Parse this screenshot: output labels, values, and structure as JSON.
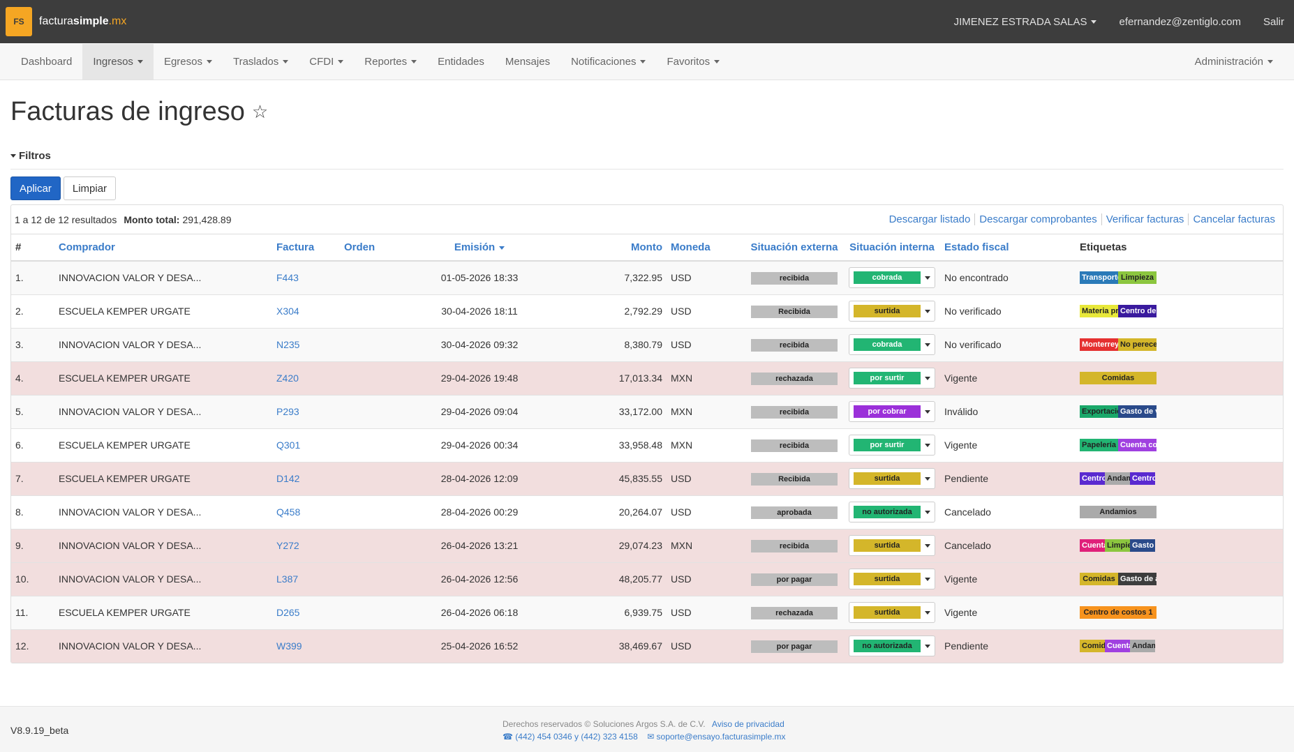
{
  "brand": {
    "logo": "FS",
    "part1": "factura",
    "part2": "simple",
    "part3": ".mx"
  },
  "topbar": {
    "user_name": "JIMENEZ ESTRADA SALAS",
    "email": "efernandez@zentiglo.com",
    "logout": "Salir"
  },
  "nav": {
    "items": [
      "Dashboard",
      "Ingresos",
      "Egresos",
      "Traslados",
      "CFDI",
      "Reportes",
      "Entidades",
      "Mensajes",
      "Notificaciones",
      "Favoritos"
    ],
    "admin": "Administración"
  },
  "page": {
    "title": "Facturas de ingreso"
  },
  "filters": {
    "label": "Filtros",
    "apply": "Aplicar",
    "clear": "Limpiar"
  },
  "summary": {
    "results": "1 a 12 de 12 resultados",
    "total_label": "Monto total:",
    "total_value": "291,428.89"
  },
  "actions": [
    "Descargar listado",
    "Descargar comprobantes",
    "Verificar facturas",
    "Cancelar facturas"
  ],
  "table": {
    "headers": [
      "#",
      "Comprador",
      "Factura",
      "Orden",
      "Emisión",
      "Monto",
      "Moneda",
      "Situación externa",
      "Situación interna",
      "Estado fiscal",
      "Etiquetas"
    ],
    "rows": [
      {
        "n": "1.",
        "buyer": "INNOVACION VALOR Y DESA...",
        "invoice": "F443",
        "order": "",
        "date": "01-05-2026 18:33",
        "amount": "7,322.95",
        "currency": "USD",
        "ext": "recibida",
        "int": "cobrada",
        "fiscal": "No encontrado",
        "tags": [
          "Transporte",
          "Limpieza"
        ]
      },
      {
        "n": "2.",
        "buyer": "ESCUELA KEMPER URGATE",
        "invoice": "X304",
        "order": "",
        "date": "30-04-2026 18:11",
        "amount": "2,792.29",
        "currency": "USD",
        "ext": "Recibida",
        "int": "surtida",
        "fiscal": "No verificado",
        "tags": [
          "Materia prim",
          "Centro de co"
        ]
      },
      {
        "n": "3.",
        "buyer": "INNOVACION VALOR Y DESA...",
        "invoice": "N235",
        "order": "",
        "date": "30-04-2026 09:32",
        "amount": "8,380.79",
        "currency": "USD",
        "ext": "recibida",
        "int": "cobrada",
        "fiscal": "No verificado",
        "tags": [
          "Monterrey",
          "No perecede"
        ]
      },
      {
        "n": "4.",
        "buyer": "ESCUELA KEMPER URGATE",
        "invoice": "Z420",
        "order": "",
        "date": "29-04-2026 19:48",
        "amount": "17,013.34",
        "currency": "MXN",
        "ext": "rechazada",
        "int": "por surtir",
        "fiscal": "Vigente",
        "tags": [
          "Comidas"
        ]
      },
      {
        "n": "5.",
        "buyer": "INNOVACION VALOR Y DESA...",
        "invoice": "P293",
        "order": "",
        "date": "29-04-2026 09:04",
        "amount": "33,172.00",
        "currency": "MXN",
        "ext": "recibida",
        "int": "por cobrar",
        "fiscal": "Inválido",
        "tags": [
          "Exportación",
          "Gasto de ver"
        ]
      },
      {
        "n": "6.",
        "buyer": "ESCUELA KEMPER URGATE",
        "invoice": "Q301",
        "order": "",
        "date": "29-04-2026 00:34",
        "amount": "33,958.48",
        "currency": "MXN",
        "ext": "recibida",
        "int": "por surtir",
        "fiscal": "Vigente",
        "tags": [
          "Papelería",
          "Cuenta conta"
        ]
      },
      {
        "n": "7.",
        "buyer": "ESCUELA KEMPER URGATE",
        "invoice": "D142",
        "order": "",
        "date": "28-04-2026 12:09",
        "amount": "45,835.55",
        "currency": "USD",
        "ext": "Recibida",
        "int": "surtida",
        "fiscal": "Pendiente",
        "tags": [
          "Centro d",
          "Andami",
          "Centro d"
        ]
      },
      {
        "n": "8.",
        "buyer": "INNOVACION VALOR Y DESA...",
        "invoice": "Q458",
        "order": "",
        "date": "28-04-2026 00:29",
        "amount": "20,264.07",
        "currency": "USD",
        "ext": "aprobada",
        "int": "no autorizada",
        "fiscal": "Cancelado",
        "tags": [
          "Andamios"
        ]
      },
      {
        "n": "9.",
        "buyer": "INNOVACION VALOR Y DESA...",
        "invoice": "Y272",
        "order": "",
        "date": "26-04-2026 13:21",
        "amount": "29,074.23",
        "currency": "MXN",
        "ext": "recibida",
        "int": "surtida",
        "fiscal": "Cancelado",
        "tags": [
          "Cuenta c",
          "Limpiez",
          "Gasto de"
        ]
      },
      {
        "n": "10.",
        "buyer": "INNOVACION VALOR Y DESA...",
        "invoice": "L387",
        "order": "",
        "date": "26-04-2026 12:56",
        "amount": "48,205.77",
        "currency": "USD",
        "ext": "por pagar",
        "int": "surtida",
        "fiscal": "Vigente",
        "tags": [
          "Comidas",
          "Gasto de adr"
        ]
      },
      {
        "n": "11.",
        "buyer": "ESCUELA KEMPER URGATE",
        "invoice": "D265",
        "order": "",
        "date": "26-04-2026 06:18",
        "amount": "6,939.75",
        "currency": "USD",
        "ext": "rechazada",
        "int": "surtida",
        "fiscal": "Vigente",
        "tags": [
          "Centro de costos 1"
        ]
      },
      {
        "n": "12.",
        "buyer": "INNOVACION VALOR Y DESA...",
        "invoice": "W399",
        "order": "",
        "date": "25-04-2026 16:52",
        "amount": "38,469.67",
        "currency": "USD",
        "ext": "por pagar",
        "int": "no autorizada",
        "fiscal": "Pendiente",
        "tags": [
          "Comidas",
          "Cuenta",
          "Andami"
        ]
      }
    ]
  },
  "footer": {
    "version": "V8.9.19_beta",
    "copyright": "Derechos reservados © Soluciones Argos S.A. de C.V.",
    "privacy": "Aviso de privacidad",
    "phones": "(442) 454 0346 y (442) 323 4158",
    "email": "soporte@ensayo.facturasimple.mx"
  }
}
